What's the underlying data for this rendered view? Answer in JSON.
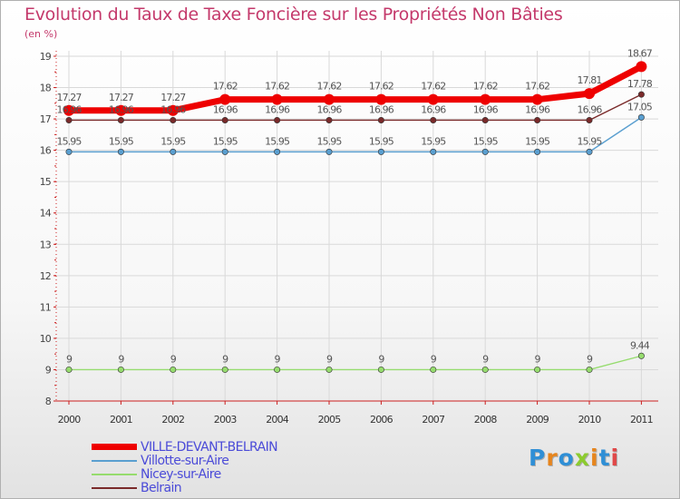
{
  "title": "Evolution du Taux de Taxe Foncière sur les Propriétés Non Bâties",
  "unit_label": "(en %)",
  "logo_text": "Proxiti",
  "logo_colors": [
    "#2f8fd6",
    "#e6851d",
    "#2f8fd6",
    "#8ccb2f",
    "#e6851d",
    "#2f8fd6",
    "#e04848"
  ],
  "colors": {
    "axis": "#cc1f1f",
    "grid": "#d9d9d9",
    "legend_text": "#4b4bd8",
    "title_text": "#c4396b"
  },
  "chart_data": {
    "type": "line",
    "x": [
      "2000",
      "2001",
      "2002",
      "2003",
      "2004",
      "2005",
      "2006",
      "2007",
      "2008",
      "2009",
      "2010",
      "2011"
    ],
    "ylim": [
      8,
      19
    ],
    "yticks": [
      "8",
      "9",
      "10",
      "11",
      "12",
      "13",
      "14",
      "15",
      "16",
      "17",
      "18",
      "19"
    ],
    "grid": true,
    "legend_position": "bottom-left",
    "series": [
      {
        "name": "VILLE-DEVANT-BELRAIN",
        "color": "#ee0000",
        "values": [
          17.27,
          17.27,
          17.27,
          17.62,
          17.62,
          17.62,
          17.62,
          17.62,
          17.62,
          17.62,
          17.81,
          18.67
        ],
        "labels": [
          "17.27",
          "17.27",
          "17.27",
          "17.62",
          "17.62",
          "17.62",
          "17.62",
          "17.62",
          "17.62",
          "17.62",
          "17.81",
          "18.67"
        ]
      },
      {
        "name": "Villotte-sur-Aire",
        "color": "#5a9fd0",
        "values": [
          15.95,
          15.95,
          15.95,
          15.95,
          15.95,
          15.95,
          15.95,
          15.95,
          15.95,
          15.95,
          15.95,
          17.05
        ],
        "labels": [
          "15.95",
          "15.95",
          "15.95",
          "15.95",
          "15.95",
          "15.95",
          "15.95",
          "15.95",
          "15.95",
          "15.95",
          "15.95",
          "17.05"
        ]
      },
      {
        "name": "Nicey-sur-Aire",
        "color": "#96dc6e",
        "values": [
          9,
          9,
          9,
          9,
          9,
          9,
          9,
          9,
          9,
          9,
          9,
          9.44
        ],
        "labels": [
          "9",
          "9",
          "9",
          "9",
          "9",
          "9",
          "9",
          "9",
          "9",
          "9",
          "9",
          "9.44"
        ]
      },
      {
        "name": "Belrain",
        "color": "#7a2a2a",
        "values": [
          16.96,
          16.96,
          16.96,
          16.96,
          16.96,
          16.96,
          16.96,
          16.96,
          16.96,
          16.96,
          16.96,
          17.78
        ],
        "labels": [
          "16.96",
          "16.96",
          "16.96",
          "16.96",
          "16.96",
          "16.96",
          "16.96",
          "16.96",
          "16.96",
          "16.96",
          "16.96",
          "17.78"
        ]
      }
    ]
  }
}
